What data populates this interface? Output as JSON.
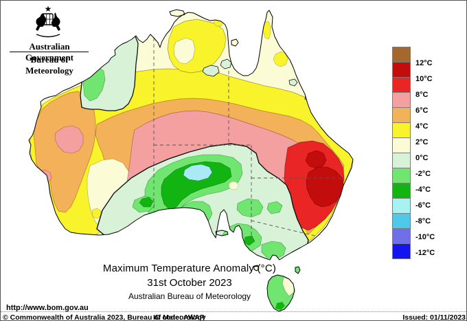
{
  "header": {
    "government": "Australian Government",
    "bureau": "Bureau of Meteorology"
  },
  "titles": {
    "line1": "Maximum Temperature Anomaly (°C)",
    "line2": "31st October 2023",
    "line3": "Australian Bureau of Meteorology"
  },
  "map": {
    "url": "http://www.bom.gov.au"
  },
  "legend": {
    "labels": [
      "12°C",
      "10°C",
      "8°C",
      "6°C",
      "4°C",
      "2°C",
      "0°C",
      "-2°C",
      "-4°C",
      "-6°C",
      "-8°C",
      "-10°C",
      "-12°C"
    ],
    "colors": [
      "#A5682C",
      "#C30C0C",
      "#E92525",
      "#F4A0A0",
      "#F3B159",
      "#F8F32B",
      "#FBFBD6",
      "#D7F2D7",
      "#70E670",
      "#12B412",
      "#A9F2F2",
      "#4FC9E9",
      "#6F6FE9",
      "#1414EE"
    ]
  },
  "footer": {
    "copyright": "© Commonwealth of Australia 2023, Bureau of Meteorology",
    "id_code": "ID code: AWAP",
    "issued": "Issued: 01/11/2023"
  }
}
